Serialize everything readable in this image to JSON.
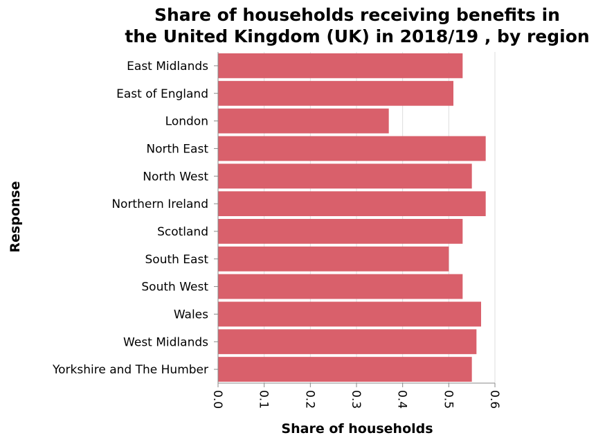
{
  "chart_data": {
    "type": "bar",
    "orientation": "horizontal",
    "title_lines": [
      "Share of households receiving benefits in",
      "the United Kingdom (UK) in 2018/19 , by region"
    ],
    "xlabel": "Share of households",
    "ylabel": "Response",
    "categories": [
      "East Midlands",
      "East of England",
      "London",
      "North East",
      "North West",
      "Northern Ireland",
      "Scotland",
      "South East",
      "South West",
      "Wales",
      "West Midlands",
      "Yorkshire and The Humber"
    ],
    "values": [
      0.53,
      0.51,
      0.37,
      0.58,
      0.55,
      0.58,
      0.53,
      0.5,
      0.53,
      0.57,
      0.56,
      0.55
    ],
    "xlim": [
      0,
      0.6
    ],
    "xticks": [
      0.0,
      0.1,
      0.2,
      0.3,
      0.4,
      0.5,
      0.6
    ],
    "xtick_labels": [
      "0.0",
      "0.1",
      "0.2",
      "0.3",
      "0.4",
      "0.5",
      "0.6"
    ],
    "grid": true,
    "bar_color": "#d9606b"
  }
}
